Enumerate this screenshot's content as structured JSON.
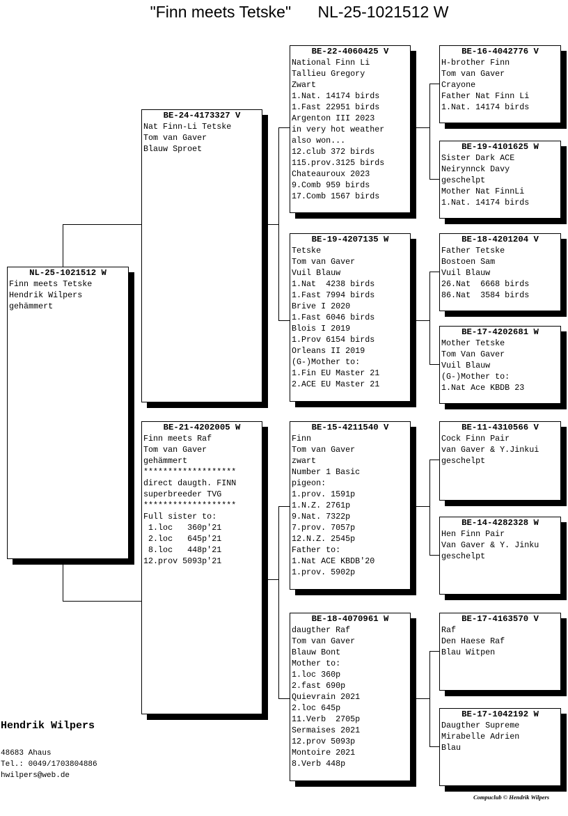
{
  "title": "\"Finn meets Tetske\"      NL-25-1021512 W",
  "pigeons": {
    "root": {
      "ring": "NL-25-1021512 W",
      "lines": [
        "Finn meets Tetske",
        "Hendrik Wilpers",
        "gehämmert"
      ]
    },
    "sire": {
      "ring": "BE-24-4173327 V",
      "lines": [
        "Nat Finn-Li Tetske",
        "Tom van Gaver",
        "Blauw Sproet"
      ]
    },
    "dam": {
      "ring": "BE-21-4202005 W",
      "lines": [
        "Finn meets Raf",
        "Tom van Gaver",
        "gehämmert",
        "*******************",
        "direct daugth. FINN",
        "superbreeder TVG",
        "*******************",
        "Full sister to:",
        " 1.loc   360p'21",
        " 2.loc   645p'21",
        " 8.loc   448p'21",
        "12.prov 5093p'21"
      ]
    },
    "ss": {
      "ring": "BE-22-4060425 V",
      "lines": [
        "National Finn Li",
        "Tallieu Gregory",
        "Zwart",
        "1.Nat. 14174 birds",
        "1.Fast 22951 birds",
        "Argenton III 2023",
        "in very hot weather",
        "also won...",
        "12.club 372 birds",
        "115.prov.3125 birds",
        "Chateauroux 2023",
        "9.Comb 959 birds",
        "17.Comb 1567 birds"
      ]
    },
    "sd": {
      "ring": "BE-19-4207135 W",
      "lines": [
        "Tetske",
        "Tom van Gaver",
        "Vuil Blauw",
        "1.Nat  4238 birds",
        "1.Fast 7994 birds",
        "Brive I 2020",
        "1.Fast 6046 birds",
        "Blois I 2019",
        "1.Prov 6154 birds",
        "Orleans II 2019",
        "(G-)Mother to:",
        "1.Fin EU Master 21",
        "2.ACE EU Master 21"
      ]
    },
    "ds": {
      "ring": "BE-15-4211540 V",
      "lines": [
        "Finn",
        "Tom van Gaver",
        "zwart",
        "Number 1 Basic",
        "pigeon:",
        "1.prov. 1591p",
        "1.N.Z. 2761p",
        "9.Nat. 7322p",
        "7.prov. 7057p",
        "12.N.Z. 2545p",
        "Father to:",
        "1.Nat ACE KBDB'20",
        "1.prov. 5902p"
      ]
    },
    "dd": {
      "ring": "BE-18-4070961 W",
      "lines": [
        "daugther Raf",
        "Tom van Gaver",
        "Blauw Bont",
        "Mother to:",
        "1.loc 360p",
        "2.fast 690p",
        "Quievrain 2021",
        "2.loc 645p",
        "11.Verb  2705p",
        "Sermaises 2021",
        "12.prov 5093p",
        "Montoire 2021",
        "8.Verb 448p"
      ]
    },
    "sss": {
      "ring": "BE-16-4042776 V",
      "lines": [
        "H-brother Finn",
        "Tom van Gaver",
        "Crayone",
        "Father Nat Finn Li",
        "1.Nat. 14174 birds"
      ]
    },
    "ssd": {
      "ring": "BE-19-4101625 W",
      "lines": [
        "Sister Dark ACE",
        "Neirynnck Davy",
        "geschelpt",
        "Mother Nat FinnLi",
        "1.Nat. 14174 birds"
      ]
    },
    "sds": {
      "ring": "BE-18-4201204 V",
      "lines": [
        "Father Tetske",
        "Bostoen Sam",
        "Vuil Blauw",
        "26.Nat  6668 birds",
        "86.Nat  3584 birds"
      ]
    },
    "sdd": {
      "ring": "BE-17-4202681 W",
      "lines": [
        "Mother Tetske",
        "Tom Van Gaver",
        "Vuil Blauw",
        "(G-)Mother to:",
        "1.Nat Ace KBDB 23"
      ]
    },
    "dss": {
      "ring": "BE-11-4310566 V",
      "lines": [
        "Cock Finn Pair",
        "van Gaver & Y.Jinkui",
        "geschelpt"
      ]
    },
    "dsd": {
      "ring": "BE-14-4282328 W",
      "lines": [
        "Hen Finn Pair",
        "Van Gaver & Y. Jinku",
        "geschelpt"
      ]
    },
    "dds": {
      "ring": "BE-17-4163570 V",
      "lines": [
        "Raf",
        "Den Haese Raf",
        "Blau Witpen"
      ]
    },
    "ddd": {
      "ring": "BE-17-1042192 W",
      "lines": [
        "Daugther Supreme",
        "Mirabelle Adrien",
        "Blau"
      ]
    }
  },
  "owner": {
    "name": "Hendrik Wilpers",
    "city": "48683  Ahaus",
    "phone": "Tel.: 0049/1703804886",
    "email": "hwilpers@web.de"
  },
  "credit": "Compuclub © Hendrik Wilpers"
}
